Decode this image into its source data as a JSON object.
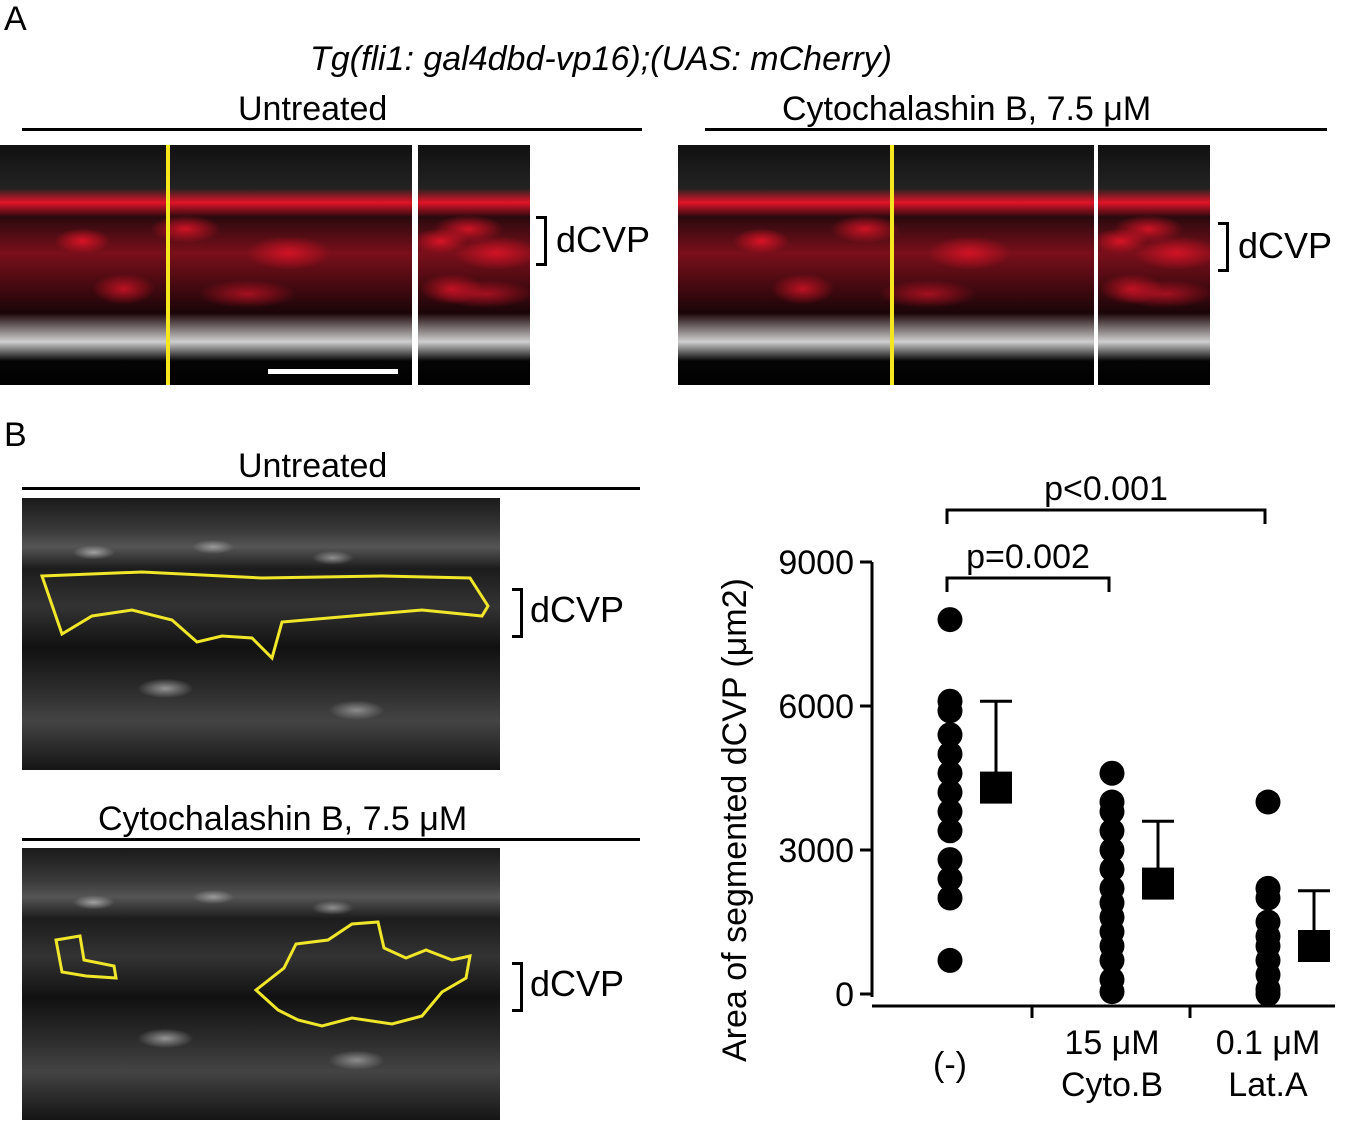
{
  "figure": {
    "panel_a": {
      "letter": "A",
      "transgenic_line": "Tg(fli1: gal4dbd-vp16);(UAS: mCherry)",
      "conditions": [
        "Untreated",
        "Cytochalashin B, 7.5 μM"
      ],
      "region_label": "dCVP"
    },
    "panel_b": {
      "letter": "B",
      "conditions": [
        "Untreated",
        "Cytochalashin B, 7.5 μM"
      ],
      "region_label": "dCVP"
    },
    "colors": {
      "outline": "#f0e62a",
      "marker": "#000000",
      "fluorescence": "#e01428"
    }
  },
  "chart_data": {
    "type": "scatter",
    "title": "",
    "ylabel": "Area of segmented dCVP (μm2)",
    "xlabel": "",
    "ylim": [
      0,
      9000
    ],
    "yticks": [
      0,
      3000,
      6000,
      9000
    ],
    "categories": [
      {
        "line1": "(-)",
        "line2": ""
      },
      {
        "line1": "15 μM",
        "line2": "Cyto.B"
      },
      {
        "line1": "0.1 μM",
        "line2": "Lat.A"
      }
    ],
    "points": [
      [
        7800,
        6100,
        5900,
        5400,
        5000,
        4600,
        4200,
        3800,
        3400,
        2800,
        2400,
        2000,
        700
      ],
      [
        4600,
        4000,
        3800,
        3400,
        3000,
        2600,
        2200,
        1900,
        1600,
        1300,
        1000,
        700,
        300,
        50
      ],
      [
        4000,
        2200,
        2000,
        1500,
        1200,
        1000,
        700,
        400,
        100,
        0
      ]
    ],
    "mean": [
      4300,
      2300,
      1000
    ],
    "sd": [
      1800,
      1300,
      1150
    ],
    "significance": [
      {
        "from": 0,
        "to": 1,
        "label": "p=0.002"
      },
      {
        "from": 0,
        "to": 2,
        "label": "p<0.001"
      }
    ]
  }
}
